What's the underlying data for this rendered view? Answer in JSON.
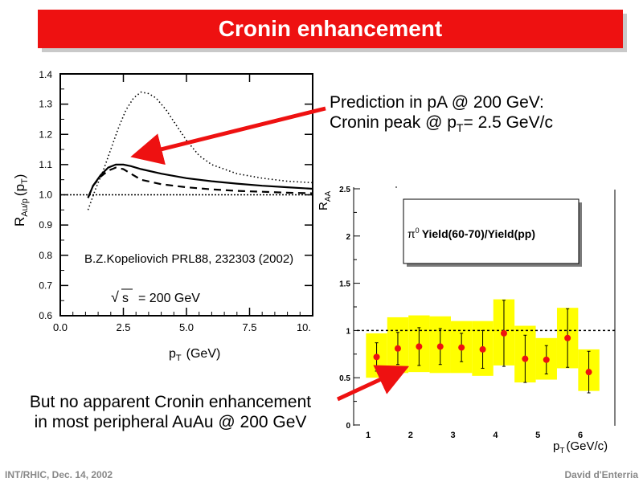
{
  "slide": {
    "title": "Cronin enhancement",
    "callout_top": {
      "line1": "Prediction in pA @ 200 GeV:",
      "line2_prefix": "Cronin peak @ p",
      "line2_sub": "T",
      "line2_suffix": "= 2.5 GeV/c"
    },
    "callout_bottom": {
      "line1": "But no apparent Cronin enhancement",
      "line2": "in most peripheral AuAu @ 200 GeV"
    },
    "footer_left": "INT/RHIC, Dec. 14, 2002",
    "footer_right": "David d'Enterria",
    "colors": {
      "title_bg": "#ee1111",
      "title_text": "#ffffff",
      "arrow": "#ee1111",
      "band": "#ffff00",
      "points": "#ee1111"
    }
  },
  "chart_data": [
    {
      "type": "line",
      "x_tick_labels": [
        "0.0",
        "2.5",
        "5.0",
        "7.5",
        "10."
      ],
      "y_tick_labels": [
        "0.6",
        "0.7",
        "0.8",
        "0.9",
        "1.0",
        "1.1",
        "1.2",
        "1.3",
        "1.4"
      ],
      "xlim": [
        0,
        10
      ],
      "ylim": [
        0.6,
        1.4
      ],
      "xlabel": "p",
      "xlabel_sub": "T",
      "xlabel_unit": "(GeV)",
      "ylabel": "R",
      "ylabel_sub": "Au/p",
      "ylabel_arg": "(p",
      "ylabel_arg_sub": "T",
      "ylabel_close": ")",
      "annotation": "B.Z.Kopeliovich PRL88, 232303 (2002)",
      "energy_label_sqrt": "√",
      "energy_label_s": "s",
      "energy_label_value": "= 200 GeV",
      "reference_line_y": 1.0,
      "series": [
        {
          "style": "dotted",
          "x": [
            1.1,
            1.4,
            1.7,
            2.0,
            2.3,
            2.6,
            2.9,
            3.2,
            3.5,
            3.8,
            4.2,
            4.6,
            5.0,
            5.5,
            6.0,
            7.0,
            8.0,
            9.0,
            10.0
          ],
          "y": [
            0.95,
            1.02,
            1.08,
            1.15,
            1.22,
            1.28,
            1.32,
            1.34,
            1.335,
            1.32,
            1.28,
            1.23,
            1.18,
            1.13,
            1.1,
            1.07,
            1.055,
            1.045,
            1.04
          ]
        },
        {
          "style": "solid",
          "x": [
            1.1,
            1.3,
            1.6,
            1.9,
            2.2,
            2.5,
            2.8,
            3.2,
            4.0,
            5.0,
            6.0,
            7.0,
            8.0,
            9.0,
            10.0
          ],
          "y": [
            0.99,
            1.03,
            1.065,
            1.09,
            1.1,
            1.1,
            1.095,
            1.085,
            1.07,
            1.055,
            1.045,
            1.037,
            1.03,
            1.025,
            1.02
          ]
        },
        {
          "style": "dashed",
          "x": [
            1.1,
            1.3,
            1.6,
            1.9,
            2.2,
            2.5,
            2.8,
            3.2,
            4.0,
            5.0,
            6.0,
            7.0,
            8.0,
            9.0,
            10.0
          ],
          "y": [
            0.99,
            1.03,
            1.06,
            1.08,
            1.09,
            1.085,
            1.07,
            1.05,
            1.035,
            1.025,
            1.018,
            1.013,
            1.01,
            1.007,
            1.005
          ]
        }
      ]
    },
    {
      "type": "scatter",
      "x_tick_labels": [
        "1",
        "2",
        "3",
        "4",
        "5",
        "6"
      ],
      "y_tick_labels": [
        "0",
        "0.5",
        "1",
        "1.5",
        "2",
        "2.5"
      ],
      "xlim": [
        0.5,
        6.85
      ],
      "ylim": [
        0,
        2.5
      ],
      "xlabel": "p",
      "xlabel_sub": "T",
      "xlabel_unit": "(GeV/c)",
      "ylabel": "R",
      "ylabel_sub": "AA",
      "legend_symbol": "π",
      "legend_symbol_sup": "0",
      "legend_text": "Yield(60-70)/Yield(pp)",
      "reference_line_y": 1.0,
      "points": [
        {
          "x": 1.2,
          "y": 0.72,
          "err": 0.15,
          "band_lo": 0.5,
          "band_hi": 0.97
        },
        {
          "x": 1.7,
          "y": 0.81,
          "err": 0.17,
          "band_lo": 0.55,
          "band_hi": 1.14
        },
        {
          "x": 2.2,
          "y": 0.83,
          "err": 0.2,
          "band_lo": 0.56,
          "band_hi": 1.16
        },
        {
          "x": 2.7,
          "y": 0.83,
          "err": 0.19,
          "band_lo": 0.55,
          "band_hi": 1.15
        },
        {
          "x": 3.2,
          "y": 0.82,
          "err": 0.15,
          "band_lo": 0.55,
          "band_hi": 1.1
        },
        {
          "x": 3.7,
          "y": 0.8,
          "err": 0.2,
          "band_lo": 0.52,
          "band_hi": 1.1
        },
        {
          "x": 4.2,
          "y": 0.97,
          "err": 0.35,
          "band_lo": 0.63,
          "band_hi": 1.33
        },
        {
          "x": 4.7,
          "y": 0.7,
          "err": 0.25,
          "band_lo": 0.45,
          "band_hi": 1.05
        },
        {
          "x": 5.2,
          "y": 0.69,
          "err": 0.15,
          "band_lo": 0.48,
          "band_hi": 0.92
        },
        {
          "x": 5.7,
          "y": 0.92,
          "err": 0.31,
          "band_lo": 0.6,
          "band_hi": 1.24
        },
        {
          "x": 6.2,
          "y": 0.56,
          "err": 0.22,
          "band_lo": 0.36,
          "band_hi": 0.8
        }
      ]
    }
  ]
}
